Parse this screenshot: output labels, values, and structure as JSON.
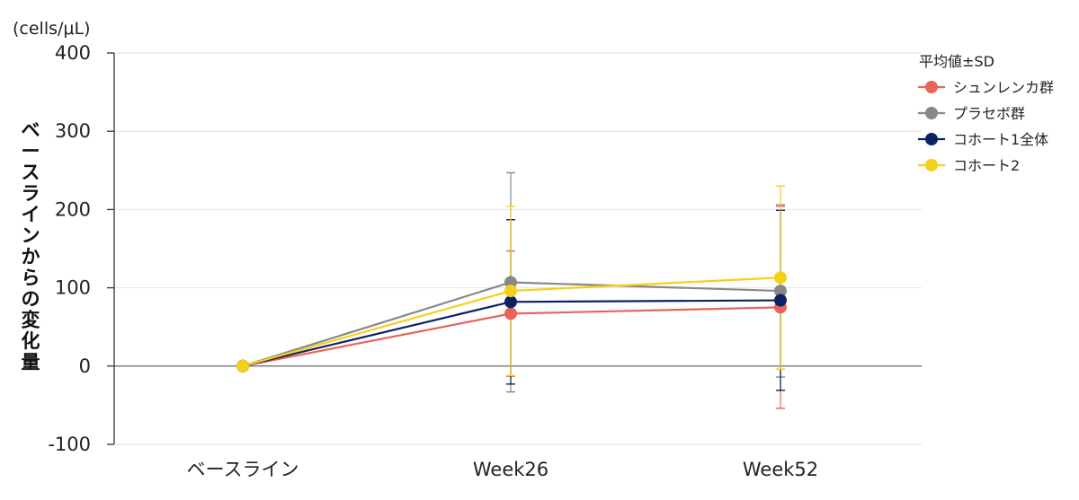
{
  "chart_data": {
    "type": "line",
    "unit_label": "(cells/μL)",
    "ylabel": "ベースラインからの変化量",
    "xlabel": "",
    "categories": [
      "ベースライン",
      "Week26",
      "Week52"
    ],
    "ylim": [
      -100,
      400
    ],
    "yticks": [
      -100,
      0,
      100,
      200,
      300,
      400
    ],
    "ytick_labels": [
      "-100",
      "0",
      "100",
      "200",
      "300",
      "400"
    ],
    "grid": true,
    "legend_title": "平均値±SD",
    "legend_position": "right",
    "series": [
      {
        "name": "シュンレンカ群",
        "color": "#e8645a",
        "values": [
          0,
          67,
          75
        ],
        "sd": [
          0,
          80,
          129
        ]
      },
      {
        "name": "プラセボ群",
        "color": "#888888",
        "values": [
          0,
          107,
          96
        ],
        "sd": [
          0,
          140,
          110
        ]
      },
      {
        "name": "コホート1全体",
        "color": "#0d2266",
        "values": [
          0,
          82,
          84
        ],
        "sd": [
          0,
          105,
          115
        ]
      },
      {
        "name": "コホート2",
        "color": "#f5d018",
        "values": [
          0,
          96,
          113
        ],
        "sd": [
          0,
          108,
          117
        ]
      }
    ]
  }
}
